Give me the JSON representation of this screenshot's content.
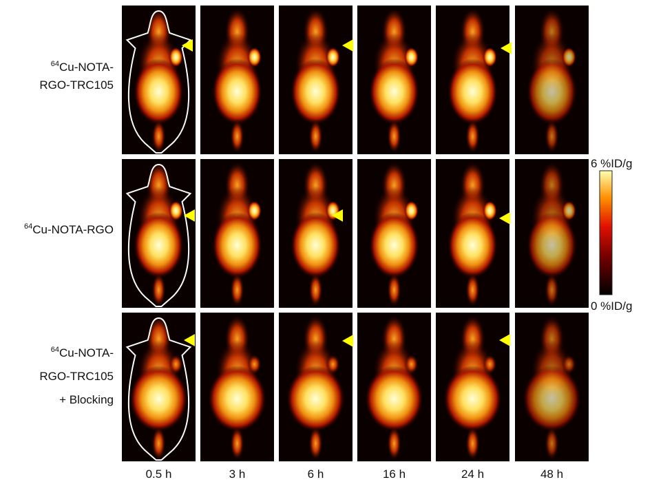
{
  "rows": [
    {
      "mass": "64",
      "lines": [
        "Cu-NOTA-",
        "RGO-TRC105"
      ]
    },
    {
      "mass": "64",
      "lines": [
        "Cu-NOTA-RGO"
      ]
    },
    {
      "mass": "64",
      "lines": [
        "Cu-NOTA-",
        "RGO-TRC105",
        "+ Blocking"
      ]
    }
  ],
  "times": [
    "0.5 h",
    "3 h",
    "6 h",
    "16 h",
    "24 h",
    "48 h"
  ],
  "colorbar": {
    "max": "6 %ID/g",
    "min": "0 %ID/g"
  }
}
